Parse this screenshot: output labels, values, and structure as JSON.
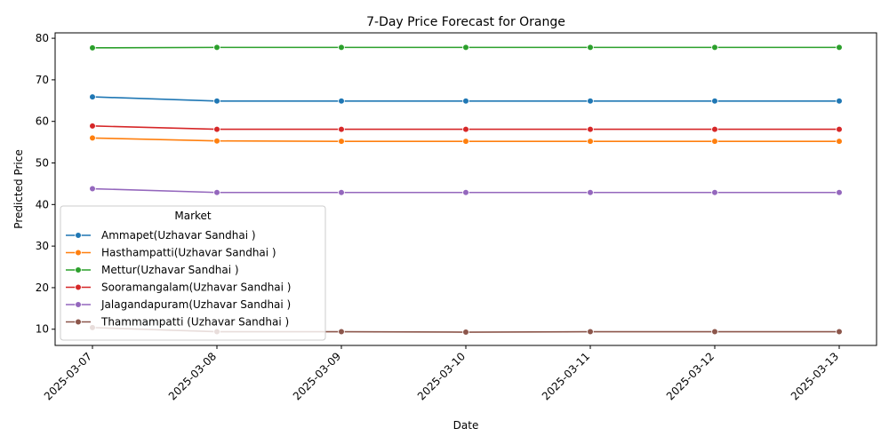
{
  "chart_data": {
    "type": "line",
    "title": "7-Day Price Forecast for Orange",
    "xlabel": "Date",
    "ylabel": "Predicted Price",
    "categories": [
      "2025-03-07",
      "2025-03-08",
      "2025-03-09",
      "2025-03-10",
      "2025-03-11",
      "2025-03-12",
      "2025-03-13"
    ],
    "ylim": [
      6.1,
      81.3
    ],
    "yticks": [
      10,
      20,
      30,
      40,
      50,
      60,
      70,
      80
    ],
    "grid": false,
    "legend_title": "Market",
    "legend_position": "center-left",
    "series": [
      {
        "name": "Ammapet(Uzhavar Sandhai )",
        "color": "#1f77b4",
        "values": [
          65.9,
          64.9,
          64.9,
          64.9,
          64.9,
          64.9,
          64.9
        ]
      },
      {
        "name": "Hasthampatti(Uzhavar Sandhai )",
        "color": "#ff7f0e",
        "values": [
          56.0,
          55.3,
          55.2,
          55.2,
          55.2,
          55.2,
          55.2
        ]
      },
      {
        "name": "Mettur(Uzhavar Sandhai )",
        "color": "#2ca02c",
        "values": [
          77.7,
          77.8,
          77.8,
          77.8,
          77.8,
          77.8,
          77.8
        ]
      },
      {
        "name": "Sooramangalam(Uzhavar Sandhai )",
        "color": "#d62728",
        "values": [
          58.9,
          58.1,
          58.1,
          58.1,
          58.1,
          58.1,
          58.1
        ]
      },
      {
        "name": "Jalagandapuram(Uzhavar Sandhai )",
        "color": "#9467bd",
        "values": [
          43.8,
          42.9,
          42.9,
          42.9,
          42.9,
          42.9,
          42.9
        ]
      },
      {
        "name": "Thammampatti (Uzhavar Sandhai )",
        "color": "#8c564b",
        "values": [
          10.4,
          9.4,
          9.4,
          9.3,
          9.4,
          9.4,
          9.4
        ]
      }
    ]
  }
}
